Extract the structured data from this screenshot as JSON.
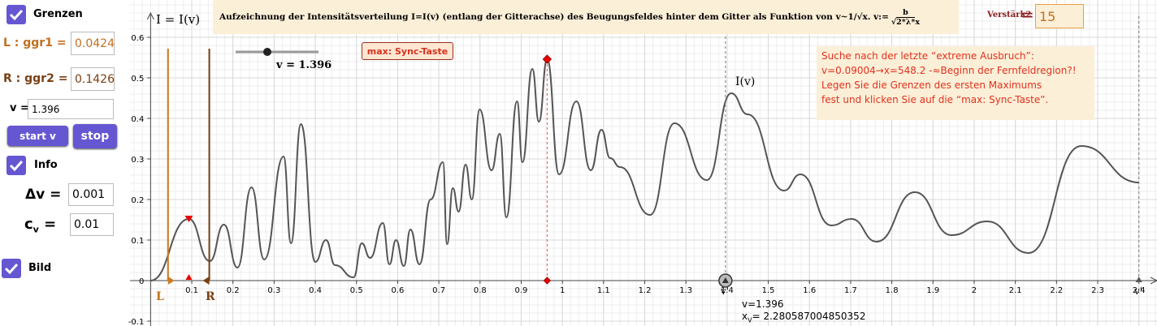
{
  "panel": {
    "grenzen": "Grenzen",
    "ggr1_label": "L : ggr1 =",
    "ggr1": 0.0424,
    "ggr2_label": "R : ggr2 =",
    "ggr2": 0.1426,
    "v_label": "v =",
    "v": 1.396,
    "start": "start v",
    "stop": "stop",
    "info": "Info",
    "dv_label": "Δv =",
    "dv": 0.001,
    "cv_label": "c",
    "cv_sub": "v",
    "cv_eq": "=",
    "cv": 0.01,
    "bild": "Bild"
  },
  "graph": {
    "title": "Aufzeichnung der Intensitätsverteilung I=I(v) (entlang der Gitterachse) des Beugungsfeldes hinter dem Gitter als Funktion von v~1/√x. v:=",
    "title_num": "b",
    "title_den": "√2*λ*x",
    "verstaerk_label": "Verstärk2",
    "verstaerk_eq": "=",
    "verstaerk": 15,
    "y_axis_label": "I = I(v)",
    "slider_label": "v = 1.396",
    "sync_button": "max: Sync-Taste",
    "info_lines": [
      "Suche nach der letzte “extreme Ausbruch”:",
      "v=0.09004→x=548.2 -≈Beginn der Fernfeldregion?!",
      "Legen Sie die Grenzen des ersten Maximums",
      "fest und klicken Sie auf die “max: Sync-Taste”."
    ],
    "curve_label": "I(v)",
    "l_label": "L",
    "r_label": "R",
    "v_point_label": "v'",
    "v_end_label": "v'",
    "v_text": "v=",
    "xv_label": "x",
    "xv_sub": "V",
    "xv_eq": "=",
    "xv": 2.280587004850352,
    "xlim": [
      -0.05,
      2.444
    ],
    "ylim": [
      -0.112,
      0.692
    ],
    "xticks": [
      0.1,
      0.2,
      0.3,
      0.4,
      0.5,
      0.6,
      0.7,
      0.8,
      0.9,
      1,
      1.1,
      1.2,
      1.3,
      1.4,
      1.5,
      1.6,
      1.7,
      1.8,
      1.9,
      2,
      2.1,
      2.2,
      2.3,
      2.4
    ],
    "yticks": [
      -0.1,
      0,
      0.1,
      0.2,
      0.3,
      0.4,
      0.5,
      0.6
    ],
    "grid": true,
    "max1": {
      "x": 0.093,
      "y": 0.152
    },
    "sync_max": {
      "x": 0.963,
      "y": 0.546
    },
    "curve": {
      "x": [
        0,
        0.093,
        0.144,
        0.178,
        0.211,
        0.245,
        0.276,
        0.323,
        0.341,
        0.365,
        0.4,
        0.426,
        0.448,
        0.493,
        0.513,
        0.533,
        0.564,
        0.58,
        0.596,
        0.615,
        0.631,
        0.653,
        0.68,
        0.71,
        0.72,
        0.734,
        0.748,
        0.765,
        0.78,
        0.799,
        0.828,
        0.848,
        0.864,
        0.89,
        0.903,
        0.927,
        0.943,
        0.963,
        0.992,
        1.034,
        1.069,
        1.095,
        1.116,
        1.14,
        1.213,
        1.272,
        1.351,
        1.41,
        1.45,
        1.538,
        1.578,
        1.653,
        1.702,
        1.763,
        1.856,
        1.945,
        2.032,
        2.132,
        2.26,
        2.4
      ],
      "y": [
        0,
        0.152,
        0.048,
        0.138,
        0.032,
        0.23,
        0.052,
        0.306,
        0.092,
        0.386,
        0.046,
        0.1,
        0.038,
        0.008,
        0.092,
        0.056,
        0.142,
        0.04,
        0.1,
        0.036,
        0.126,
        0.04,
        0.2,
        0.292,
        0.09,
        0.228,
        0.17,
        0.286,
        0.2,
        0.422,
        0.272,
        0.362,
        0.156,
        0.442,
        0.292,
        0.522,
        0.392,
        0.546,
        0.262,
        0.442,
        0.272,
        0.372,
        0.302,
        0.28,
        0.162,
        0.388,
        0.248,
        0.462,
        0.41,
        0.222,
        0.262,
        0.136,
        0.152,
        0.096,
        0.218,
        0.112,
        0.146,
        0.068,
        0.332,
        0.242
      ]
    }
  }
}
